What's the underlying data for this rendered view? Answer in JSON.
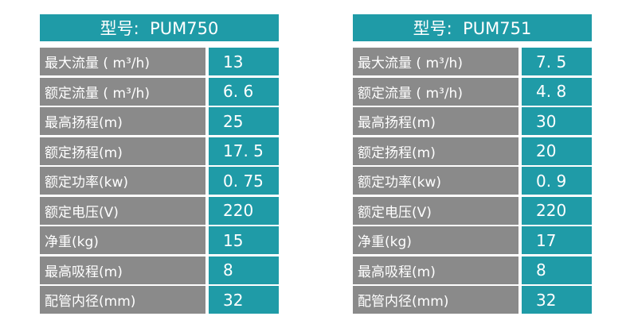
{
  "tables": [
    {
      "title": "型号:  PUM750",
      "rows": [
        [
          "最大流量 ( m³/h)",
          "13"
        ],
        [
          "额定流量 ( m³/h)",
          "6. 6"
        ],
        [
          "最高扬程(m)",
          "25"
        ],
        [
          "额定扬程(m)",
          "17. 5"
        ],
        [
          "额定功率(kw)",
          "0. 75"
        ],
        [
          "额定电压(V)",
          "220"
        ],
        [
          "净重(kg)",
          "15"
        ],
        [
          "最高吸程(m)",
          "8"
        ],
        [
          "配管内径(mm)",
          "32"
        ]
      ]
    },
    {
      "title": "型号:  PUM751",
      "rows": [
        [
          "最大流量 ( m³/h)",
          "7. 5"
        ],
        [
          "额定流量 ( m³/h)",
          "4. 8"
        ],
        [
          "最高扬程(m)",
          "30"
        ],
        [
          "额定扬程(m)",
          "20"
        ],
        [
          "额定功率(kw)",
          "0. 9"
        ],
        [
          "额定电压(V)",
          "220"
        ],
        [
          "净重(kg)",
          "17"
        ],
        [
          "最高吸程(m)",
          "8"
        ],
        [
          "配管内径(mm)",
          "32"
        ]
      ]
    }
  ]
}
